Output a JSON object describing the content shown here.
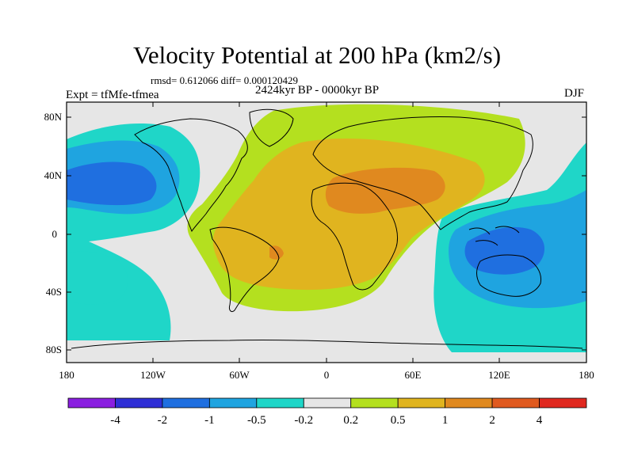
{
  "figure": {
    "title": "Velocity Potential at 200 hPa (km2/s)",
    "stats": "rmsd= 0.612066 diff= 0.000120429",
    "period": "2424kyr BP - 0000kyr BP",
    "experiment": "Expt = tfMfe-tfmea",
    "season": "DJF"
  },
  "map": {
    "projection": "cylindrical equidistant",
    "lon_range": [
      -180,
      180
    ],
    "lat_range": [
      -90,
      90
    ],
    "lon_ticks": [
      "180",
      "120W",
      "60W",
      "0",
      "60E",
      "120E",
      "180"
    ],
    "lat_ticks": [
      "80N",
      "40N",
      "0",
      "40S",
      "80S"
    ],
    "background_color": "#e6e6e6",
    "coast_color": "#000000"
  },
  "colorbar": {
    "colors": [
      "#8a1fe0",
      "#2f2fd6",
      "#1f6fe0",
      "#1fa4e0",
      "#1fd6c8",
      "#e6e6e6",
      "#b4e01f",
      "#e0b41f",
      "#e0891f",
      "#e05a1f",
      "#e0281f"
    ],
    "labels": [
      "-4",
      "-2",
      "-1",
      "-0.5",
      "-0.2",
      "0.2",
      "0.5",
      "1",
      "2",
      "4"
    ]
  }
}
